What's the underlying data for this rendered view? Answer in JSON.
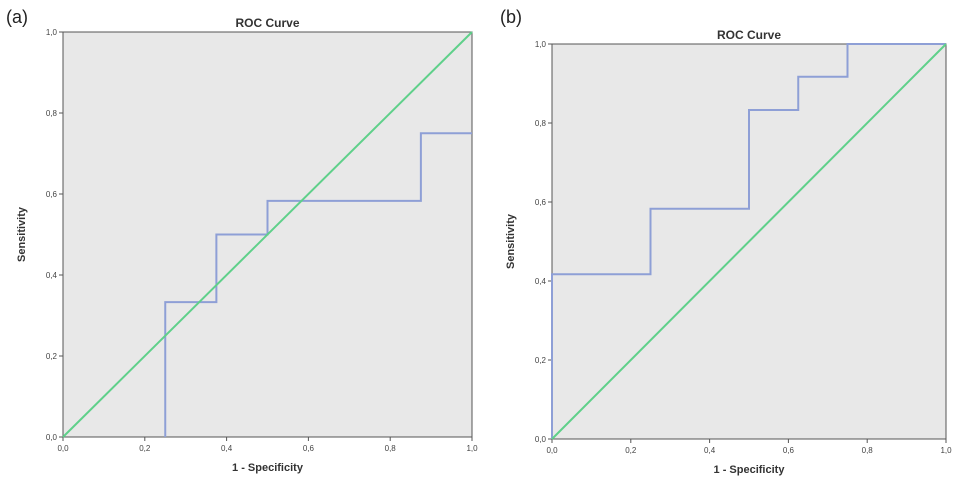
{
  "chart_data": [
    {
      "type": "line",
      "panel_label": "(a)",
      "title": "ROC Curve",
      "xlabel": "1 - Specificity",
      "ylabel": "Sensitivity",
      "xlim": [
        0,
        1
      ],
      "ylim": [
        0,
        1
      ],
      "xticks": [
        "0,0",
        "0,2",
        "0,4",
        "0,6",
        "0,8",
        "1,0"
      ],
      "yticks": [
        "0,0",
        "0,2",
        "0,4",
        "0,6",
        "0,8",
        "1,0"
      ],
      "grid": false,
      "series": [
        {
          "color": "#8e9fd6",
          "x": [
            0.25,
            0.25,
            0.375,
            0.375,
            0.5,
            0.5,
            0.875,
            0.875,
            1.0
          ],
          "y": [
            0.0,
            0.333,
            0.333,
            0.5,
            0.5,
            0.583,
            0.583,
            0.75,
            0.75
          ]
        },
        {
          "color": "#5fd08a",
          "x": [
            0,
            1
          ],
          "y": [
            0,
            1
          ]
        }
      ]
    },
    {
      "type": "line",
      "panel_label": "(b)",
      "title": "ROC Curve",
      "xlabel": "1 - Specificity",
      "ylabel": "Sensitivity",
      "xlim": [
        0,
        1
      ],
      "ylim": [
        0,
        1
      ],
      "xticks": [
        "0,0",
        "0,2",
        "0,4",
        "0,6",
        "0,8",
        "1,0"
      ],
      "yticks": [
        "0,0",
        "0,2",
        "0,4",
        "0,6",
        "0,8",
        "1,0"
      ],
      "grid": false,
      "series": [
        {
          "color": "#8e9fd6",
          "x": [
            0.0,
            0.0,
            0.25,
            0.25,
            0.5,
            0.5,
            0.625,
            0.625,
            0.75,
            0.75,
            1.0
          ],
          "y": [
            0.0,
            0.417,
            0.417,
            0.583,
            0.583,
            0.833,
            0.833,
            0.917,
            0.917,
            1.0,
            1.0
          ]
        },
        {
          "color": "#5fd08a",
          "x": [
            0,
            1
          ],
          "y": [
            0,
            1
          ]
        }
      ]
    }
  ],
  "colors": {
    "plot_background": "#e8e8e8",
    "frame": "#555555"
  }
}
